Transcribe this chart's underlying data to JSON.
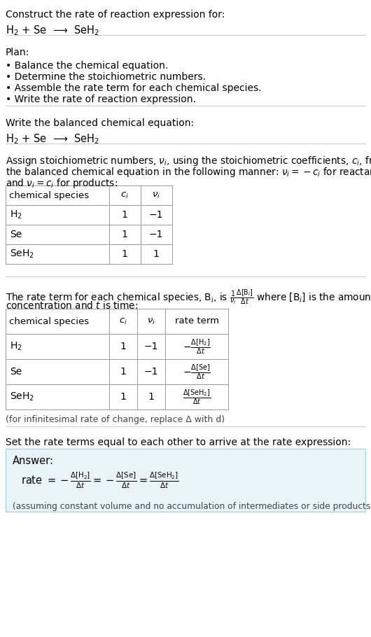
{
  "bg_color": "#ffffff",
  "text_color": "#000000",
  "section1_title": "Construct the rate of reaction expression for:",
  "section1_eq": "H$_2$ + Se  ⟶  SeH$_2$",
  "section2_title": "Plan:",
  "section2_bullets": [
    "• Balance the chemical equation.",
    "• Determine the stoichiometric numbers.",
    "• Assemble the rate term for each chemical species.",
    "• Write the rate of reaction expression."
  ],
  "section3_title": "Write the balanced chemical equation:",
  "section3_eq": "H$_2$ + Se  ⟶  SeH$_2$",
  "table1_headers": [
    "chemical species",
    "$c_i$",
    "$\\nu_i$"
  ],
  "table1_rows": [
    [
      "H$_2$",
      "1",
      "−1"
    ],
    [
      "Se",
      "1",
      "−1"
    ],
    [
      "SeH$_2$",
      "1",
      "1"
    ]
  ],
  "table2_headers": [
    "chemical species",
    "$c_i$",
    "$\\nu_i$",
    "rate term"
  ],
  "table2_rows": [
    [
      "H$_2$",
      "1",
      "−1",
      "$-\\frac{\\Delta[\\mathrm{H_2}]}{\\Delta t}$"
    ],
    [
      "Se",
      "1",
      "−1",
      "$-\\frac{\\Delta[\\mathrm{Se}]}{\\Delta t}$"
    ],
    [
      "SeH$_2$",
      "1",
      "1",
      "$\\frac{\\Delta[\\mathrm{SeH_2}]}{\\Delta t}$"
    ]
  ],
  "section5_footnote": "(for infinitesimal rate of change, replace Δ with d)",
  "section6_title": "Set the rate terms equal to each other to arrive at the rate expression:",
  "answer_label": "Answer:",
  "answer_eq": "rate $= -\\frac{\\Delta[\\mathrm{H_2}]}{\\Delta t} = -\\frac{\\Delta[\\mathrm{Se}]}{\\Delta t} = \\frac{\\Delta[\\mathrm{SeH_2}]}{\\Delta t}$",
  "answer_note": "(assuming constant volume and no accumulation of intermediates or side products)",
  "answer_box_color": "#e8f4f8",
  "answer_box_border": "#aad4e8",
  "divider_color": "#cccccc",
  "table_line_color": "#999999"
}
